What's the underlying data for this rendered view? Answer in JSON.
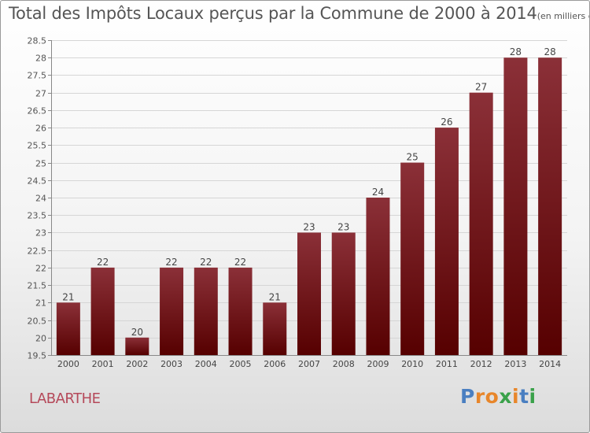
{
  "header": {
    "title": "Total des Impôts Locaux perçus par la Commune de 2000 à 2014",
    "unit": "(en milliers d'€)"
  },
  "commune": "LABARTHE",
  "brand": {
    "name": "Proxiti",
    "letters": [
      "P",
      "r",
      "o",
      "x",
      "i",
      "t",
      "i"
    ],
    "letter_colors": [
      "#4a7fc1",
      "#e8862a",
      "#e8862a",
      "#3aa14a",
      "#e8862a",
      "#4a7fc1",
      "#3aa14a"
    ]
  },
  "chart_data": {
    "type": "bar",
    "title": "Total des Impôts Locaux perçus par la Commune de 2000 à 2014",
    "xlabel": "",
    "ylabel": "",
    "categories": [
      "2000",
      "2001",
      "2002",
      "2003",
      "2004",
      "2005",
      "2006",
      "2007",
      "2008",
      "2009",
      "2010",
      "2011",
      "2012",
      "2013",
      "2014"
    ],
    "values": [
      21,
      22,
      20,
      22,
      22,
      22,
      21,
      23,
      23,
      24,
      25,
      26,
      27,
      28,
      28
    ],
    "data_labels": [
      "21",
      "22",
      "20",
      "22",
      "22",
      "22",
      "21",
      "23",
      "23",
      "24",
      "25",
      "26",
      "27",
      "28",
      "28"
    ],
    "ylim": [
      19.5,
      28.5
    ],
    "yticks": [
      19.5,
      20,
      20.5,
      21,
      21.5,
      22,
      22.5,
      23,
      23.5,
      24,
      24.5,
      25,
      25.5,
      26,
      26.5,
      27,
      27.5,
      28,
      28.5
    ],
    "ytick_labels": [
      "19.5",
      "20",
      "20.5",
      "21",
      "21.5",
      "22",
      "22.5",
      "23",
      "23.5",
      "24",
      "24.5",
      "25",
      "25.5",
      "26",
      "26.5",
      "27",
      "27.5",
      "28",
      "28.5"
    ],
    "grid": true,
    "bar_color_top": "#8b3038",
    "bar_color_bottom": "#560000"
  }
}
